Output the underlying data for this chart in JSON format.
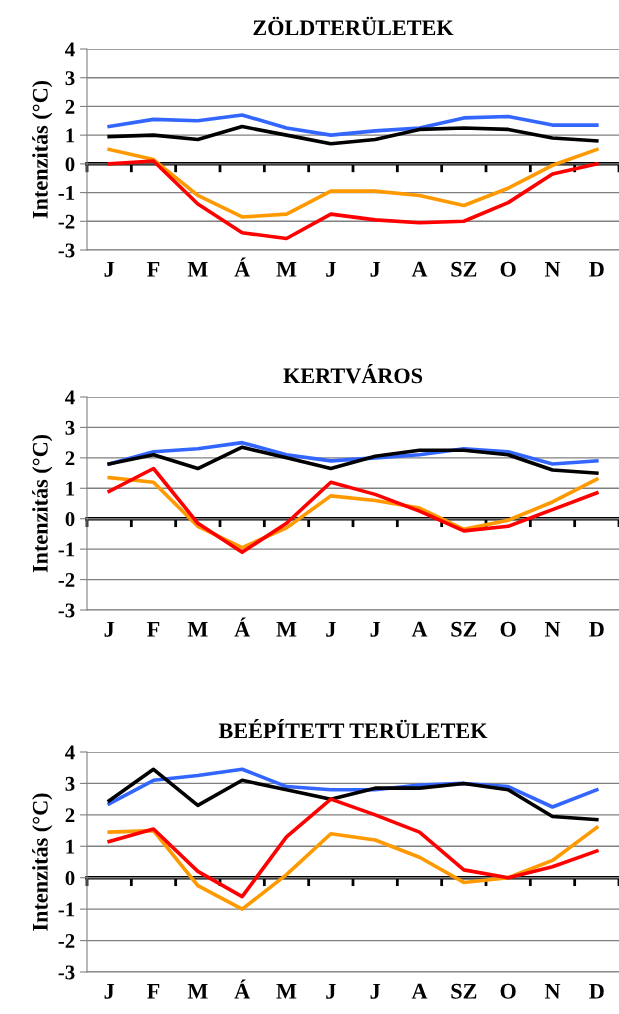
{
  "chart_data": [
    {
      "type": "line",
      "title": "ZÖLDTERÜLETEK",
      "ylabel": "Intenzitás (°C)",
      "categories": [
        "J",
        "F",
        "M",
        "Á",
        "M",
        "J",
        "J",
        "A",
        "SZ",
        "O",
        "N",
        "D"
      ],
      "ylim": [
        -3,
        4
      ],
      "yticks": [
        -3,
        -2,
        -1,
        0,
        1,
        2,
        3,
        4
      ],
      "grid": "y",
      "series": [
        {
          "color": "#3366ff",
          "values": [
            1.3,
            1.55,
            1.5,
            1.7,
            1.25,
            1.0,
            1.15,
            1.25,
            1.6,
            1.65,
            1.35,
            1.35
          ]
        },
        {
          "color": "#000000",
          "values": [
            0.95,
            1.0,
            0.85,
            1.3,
            1.0,
            0.7,
            0.85,
            1.2,
            1.25,
            1.2,
            0.9,
            0.8
          ]
        },
        {
          "color": "#ff9900",
          "values": [
            0.5,
            0.15,
            -1.1,
            -1.85,
            -1.75,
            -0.95,
            -0.95,
            -1.1,
            -1.45,
            -0.85,
            -0.05,
            0.5
          ]
        },
        {
          "color": "#ff0000",
          "values": [
            0,
            0.1,
            -1.4,
            -2.4,
            -2.6,
            -1.75,
            -1.95,
            -2.05,
            -2.0,
            -1.35,
            -0.35,
            0
          ]
        }
      ]
    },
    {
      "type": "line",
      "title": "KERTVÁROS",
      "ylabel": "Intenzitás (°C)",
      "categories": [
        "J",
        "F",
        "M",
        "Á",
        "M",
        "J",
        "J",
        "A",
        "SZ",
        "O",
        "N",
        "D"
      ],
      "ylim": [
        -3,
        4
      ],
      "yticks": [
        -3,
        -2,
        -1,
        0,
        1,
        2,
        3,
        4
      ],
      "grid": "y",
      "series": [
        {
          "color": "#3366ff",
          "values": [
            1.8,
            2.2,
            2.3,
            2.5,
            2.1,
            1.9,
            2.0,
            2.1,
            2.3,
            2.2,
            1.8,
            1.9
          ]
        },
        {
          "color": "#000000",
          "values": [
            1.8,
            2.1,
            1.65,
            2.35,
            2.0,
            1.65,
            2.05,
            2.25,
            2.25,
            2.1,
            1.6,
            1.5
          ]
        },
        {
          "color": "#ff9900",
          "values": [
            1.35,
            1.2,
            -0.25,
            -0.95,
            -0.3,
            0.75,
            0.6,
            0.35,
            -0.35,
            -0.05,
            0.55,
            1.3
          ]
        },
        {
          "color": "#ff0000",
          "values": [
            0.9,
            1.65,
            -0.15,
            -1.1,
            -0.15,
            1.2,
            0.8,
            0.25,
            -0.4,
            -0.25,
            0.3,
            0.85
          ]
        }
      ]
    },
    {
      "type": "line",
      "title": "BEÉPÍTETT TERÜLETEK",
      "ylabel": "Intenzitás (°C)",
      "categories": [
        "J",
        "F",
        "M",
        "Á",
        "M",
        "J",
        "J",
        "A",
        "SZ",
        "O",
        "N",
        "D"
      ],
      "ylim": [
        -3,
        4
      ],
      "yticks": [
        -3,
        -2,
        -1,
        0,
        1,
        2,
        3,
        4
      ],
      "grid": "y",
      "series": [
        {
          "color": "#3366ff",
          "values": [
            2.35,
            3.1,
            3.25,
            3.45,
            2.9,
            2.8,
            2.8,
            2.95,
            3.0,
            2.9,
            2.25,
            2.8
          ]
        },
        {
          "color": "#000000",
          "values": [
            2.45,
            3.45,
            2.3,
            3.1,
            2.8,
            2.5,
            2.85,
            2.85,
            3.0,
            2.8,
            1.95,
            1.85
          ]
        },
        {
          "color": "#ff9900",
          "values": [
            1.45,
            1.5,
            -0.25,
            -1.0,
            0.1,
            1.4,
            1.2,
            0.65,
            -0.15,
            0.0,
            0.55,
            1.6
          ]
        },
        {
          "color": "#ff0000",
          "values": [
            1.15,
            1.55,
            0.2,
            -0.6,
            1.3,
            2.5,
            2.0,
            1.45,
            0.25,
            0.0,
            0.35,
            0.85
          ]
        }
      ]
    }
  ]
}
